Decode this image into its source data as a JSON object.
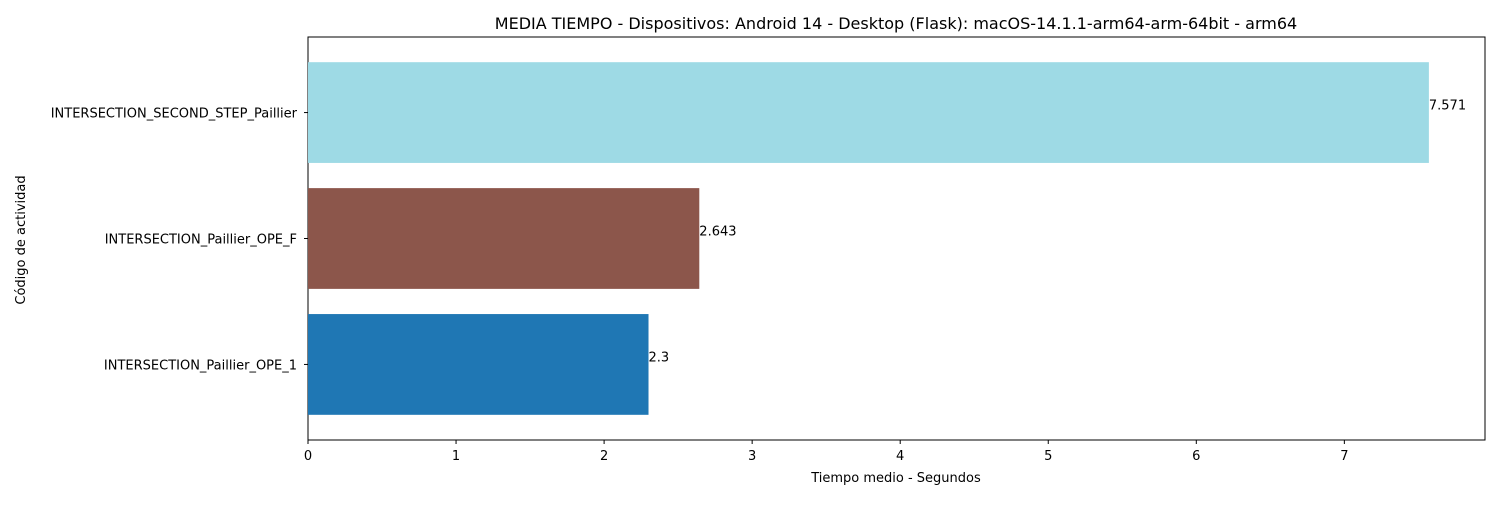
{
  "chart_data": {
    "type": "bar",
    "orientation": "horizontal",
    "title": "MEDIA TIEMPO - Dispositivos: Android 14 - Desktop (Flask): macOS-14.1.1-arm64-arm-64bit - arm64",
    "xlabel": "Tiempo medio - Segundos",
    "ylabel": "Código de actividad",
    "categories": [
      "INTERSECTION_Paillier_OPE_1",
      "INTERSECTION_Paillier_OPE_F",
      "INTERSECTION_SECOND_STEP_Paillier"
    ],
    "values": [
      2.3,
      2.643,
      7.571
    ],
    "value_labels": [
      "2.3",
      "2.643",
      "7.571"
    ],
    "colors": [
      "#1f77b4",
      "#8c564b",
      "#9edae5"
    ],
    "xlim": [
      0,
      7.95
    ],
    "xticks": [
      0,
      1,
      2,
      3,
      4,
      5,
      6,
      7
    ],
    "grid": false,
    "legend": "none"
  }
}
